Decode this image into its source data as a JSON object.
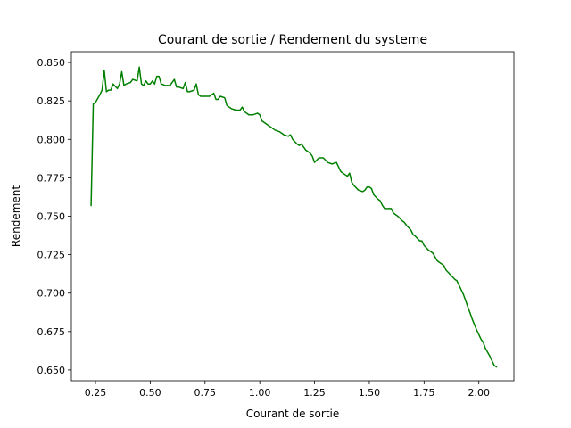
{
  "chart_data": {
    "type": "line",
    "title": "Courant de sortie / Rendement du systeme",
    "xlabel": "Courant de sortie",
    "ylabel": "Rendement",
    "xlim": [
      0.14,
      2.16
    ],
    "ylim": [
      0.643,
      0.857
    ],
    "xticks": [
      0.25,
      0.5,
      0.75,
      1.0,
      1.25,
      1.5,
      1.75,
      2.0
    ],
    "xtick_labels": [
      "0.25",
      "0.50",
      "0.75",
      "1.00",
      "1.25",
      "1.50",
      "1.75",
      "2.00"
    ],
    "yticks": [
      0.65,
      0.675,
      0.7,
      0.725,
      0.75,
      0.775,
      0.8,
      0.825,
      0.85
    ],
    "ytick_labels": [
      "0.650",
      "0.675",
      "0.700",
      "0.725",
      "0.750",
      "0.775",
      "0.800",
      "0.825",
      "0.850"
    ],
    "grid": false,
    "series": [
      {
        "color": "#008000",
        "x": [
          0.23,
          0.24,
          0.25,
          0.27,
          0.28,
          0.29,
          0.3,
          0.31,
          0.32,
          0.33,
          0.35,
          0.36,
          0.37,
          0.38,
          0.39,
          0.41,
          0.42,
          0.44,
          0.45,
          0.46,
          0.47,
          0.48,
          0.49,
          0.5,
          0.51,
          0.52,
          0.53,
          0.54,
          0.55,
          0.57,
          0.59,
          0.61,
          0.62,
          0.63,
          0.65,
          0.66,
          0.67,
          0.68,
          0.7,
          0.71,
          0.72,
          0.73,
          0.75,
          0.77,
          0.79,
          0.8,
          0.81,
          0.82,
          0.84,
          0.85,
          0.86,
          0.87,
          0.89,
          0.91,
          0.92,
          0.93,
          0.95,
          0.97,
          0.99,
          1.0,
          1.01,
          1.03,
          1.05,
          1.07,
          1.09,
          1.11,
          1.13,
          1.14,
          1.15,
          1.17,
          1.18,
          1.19,
          1.21,
          1.23,
          1.24,
          1.25,
          1.27,
          1.29,
          1.31,
          1.33,
          1.35,
          1.36,
          1.37,
          1.39,
          1.4,
          1.41,
          1.42,
          1.43,
          1.45,
          1.47,
          1.48,
          1.49,
          1.5,
          1.51,
          1.52,
          1.54,
          1.55,
          1.56,
          1.57,
          1.58,
          1.6,
          1.61,
          1.63,
          1.65,
          1.66,
          1.67,
          1.69,
          1.7,
          1.71,
          1.73,
          1.74,
          1.75,
          1.77,
          1.78,
          1.79,
          1.81,
          1.82,
          1.84,
          1.85,
          1.87,
          1.89,
          1.9,
          1.91,
          1.93,
          1.95,
          1.97,
          1.99,
          2.01,
          2.02,
          2.03,
          2.05,
          2.06,
          2.07,
          2.08
        ],
        "y": [
          0.757,
          0.823,
          0.824,
          0.829,
          0.832,
          0.845,
          0.831,
          0.832,
          0.832,
          0.836,
          0.833,
          0.836,
          0.844,
          0.835,
          0.836,
          0.837,
          0.839,
          0.838,
          0.847,
          0.836,
          0.835,
          0.838,
          0.836,
          0.836,
          0.838,
          0.836,
          0.841,
          0.841,
          0.836,
          0.835,
          0.835,
          0.839,
          0.834,
          0.834,
          0.833,
          0.837,
          0.831,
          0.831,
          0.832,
          0.836,
          0.829,
          0.828,
          0.828,
          0.828,
          0.83,
          0.826,
          0.826,
          0.828,
          0.827,
          0.822,
          0.821,
          0.82,
          0.819,
          0.819,
          0.821,
          0.818,
          0.816,
          0.816,
          0.817,
          0.816,
          0.812,
          0.81,
          0.808,
          0.806,
          0.805,
          0.803,
          0.802,
          0.803,
          0.8,
          0.797,
          0.796,
          0.797,
          0.793,
          0.791,
          0.789,
          0.785,
          0.788,
          0.788,
          0.785,
          0.784,
          0.785,
          0.782,
          0.779,
          0.777,
          0.776,
          0.778,
          0.772,
          0.77,
          0.767,
          0.766,
          0.767,
          0.769,
          0.769,
          0.768,
          0.764,
          0.761,
          0.76,
          0.757,
          0.755,
          0.755,
          0.755,
          0.752,
          0.75,
          0.747,
          0.746,
          0.744,
          0.741,
          0.738,
          0.737,
          0.734,
          0.734,
          0.731,
          0.728,
          0.727,
          0.726,
          0.721,
          0.72,
          0.718,
          0.715,
          0.712,
          0.709,
          0.708,
          0.705,
          0.699,
          0.691,
          0.683,
          0.676,
          0.67,
          0.668,
          0.664,
          0.659,
          0.656,
          0.653,
          0.652
        ]
      }
    ]
  }
}
